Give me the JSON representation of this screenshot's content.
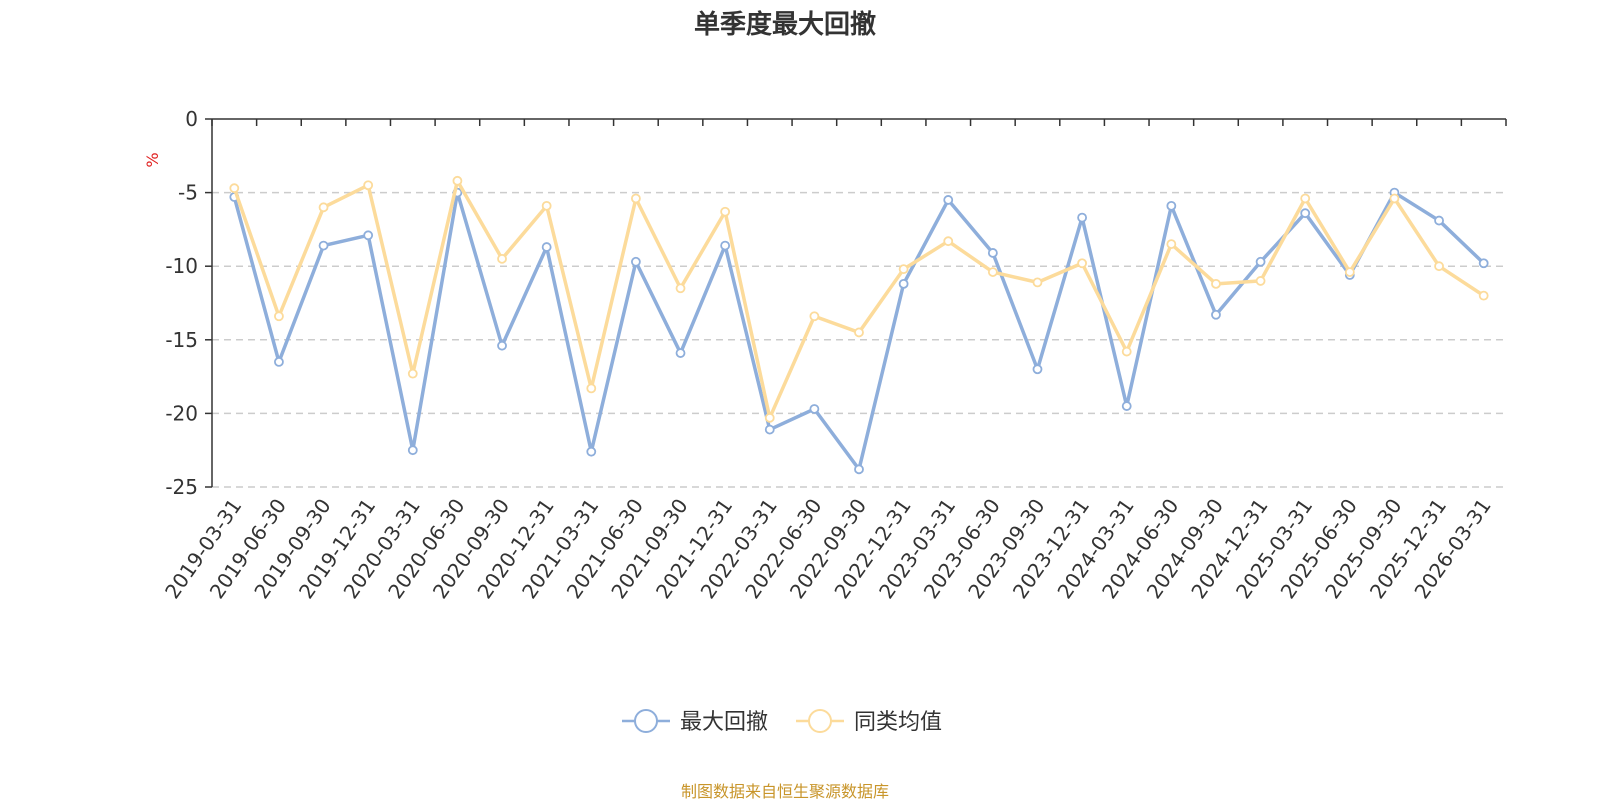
{
  "chart_data": {
    "type": "line",
    "title": "单季度最大回撤",
    "ylabel": "%",
    "ylim": [
      -25,
      0
    ],
    "yticks": [
      0,
      -5,
      -10,
      -15,
      -20,
      -25
    ],
    "grid": true,
    "legend_position": "bottom",
    "categories": [
      "2019-03-31",
      "2019-06-30",
      "2019-09-30",
      "2019-12-31",
      "2020-03-31",
      "2020-06-30",
      "2020-09-30",
      "2020-12-31",
      "2021-03-31",
      "2021-06-30",
      "2021-09-30",
      "2021-12-31",
      "2022-03-31",
      "2022-06-30",
      "2022-09-30",
      "2022-12-31",
      "2023-03-31",
      "2023-06-30",
      "2023-09-30",
      "2023-12-31",
      "2024-03-31",
      "2024-06-30",
      "2024-09-30",
      "2024-12-31",
      "2025-03-31",
      "2025-06-30",
      "2025-09-30",
      "2025-12-31",
      "2026-03-31"
    ],
    "series": [
      {
        "name": "最大回撤",
        "color": "#8eaedb",
        "values": [
          -5.3,
          -16.5,
          -8.6,
          -7.9,
          -22.5,
          -5.0,
          -15.4,
          -8.7,
          -22.6,
          -9.7,
          -15.9,
          -8.6,
          -21.1,
          -19.7,
          -23.8,
          -11.2,
          -5.5,
          -9.1,
          -17.0,
          -6.7,
          -19.5,
          -5.9,
          -13.3,
          -9.7,
          -6.4,
          -10.6,
          -5.0,
          -6.9,
          -9.8
        ]
      },
      {
        "name": "同类均值",
        "color": "#fcdb9b",
        "values": [
          -4.7,
          -13.4,
          -6.0,
          -4.5,
          -17.3,
          -4.2,
          -9.5,
          -5.9,
          -18.3,
          -5.4,
          -11.5,
          -6.3,
          -20.3,
          -13.4,
          -14.5,
          -10.2,
          -8.3,
          -10.4,
          -11.1,
          -9.8,
          -15.8,
          -8.5,
          -11.2,
          -11.0,
          -5.4,
          -10.4,
          -5.4,
          -10.0,
          -12.0
        ]
      }
    ]
  },
  "footer": {
    "source": "制图数据来自恒生聚源数据库"
  },
  "colors": {
    "grid": "#cccccc",
    "axis": "#333333",
    "unit": "#e02020",
    "source": "#c8952a"
  }
}
